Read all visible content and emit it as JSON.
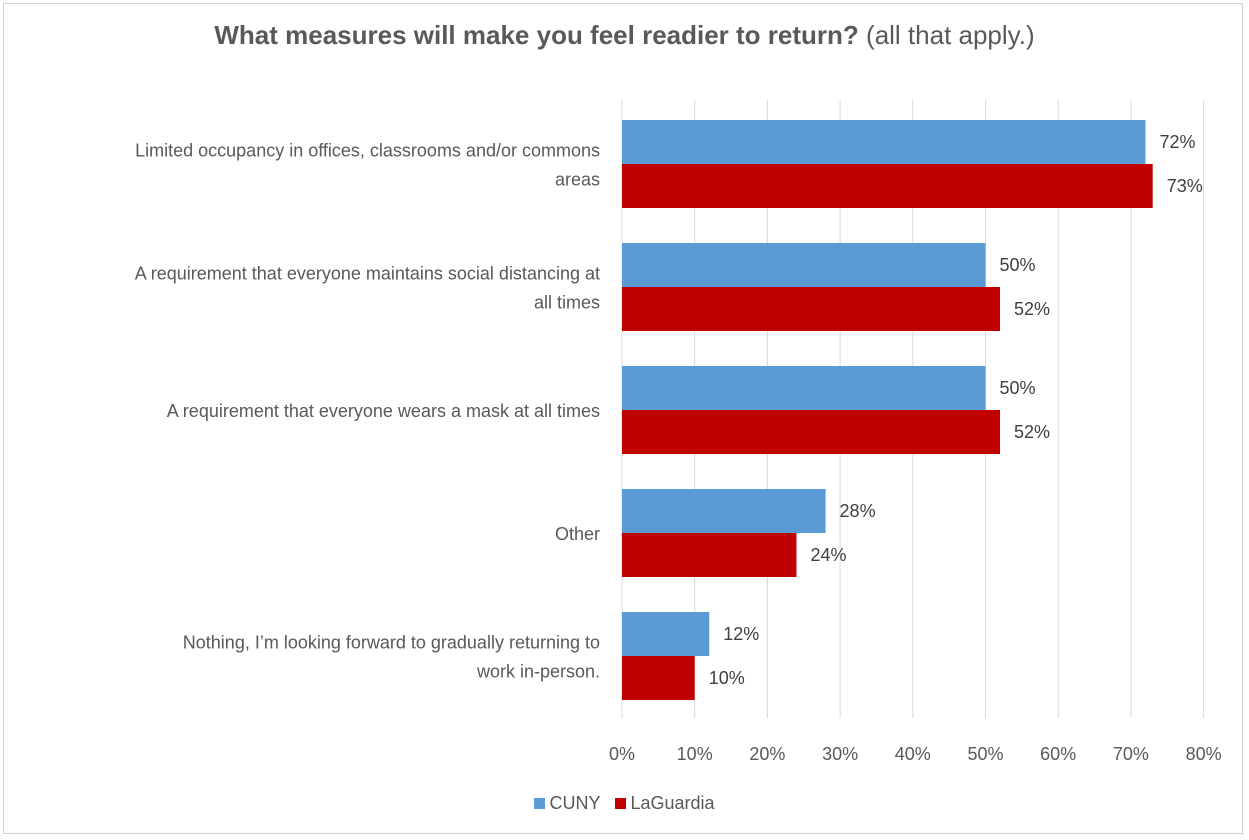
{
  "chart_data": {
    "type": "bar",
    "orientation": "horizontal",
    "title_bold": "What measures will make you feel readier to return?",
    "title_rest": "(all that apply.)",
    "categories": [
      [
        "Limited occupancy in offices, classrooms and/or commons",
        "areas"
      ],
      [
        "A requirement that everyone maintains social distancing at",
        "all times"
      ],
      [
        "A requirement that everyone wears a mask at all times"
      ],
      [
        "Other"
      ],
      [
        "Nothing, I’m looking forward to gradually returning to",
        "work in-person."
      ]
    ],
    "series": [
      {
        "name": "CUNY",
        "color": "#5b9bd5",
        "values": [
          72,
          50,
          50,
          28,
          12
        ],
        "labels": [
          "72%",
          "50%",
          "50%",
          "28%",
          "12%"
        ]
      },
      {
        "name": "LaGuardia",
        "color": "#c00000",
        "values": [
          73,
          52,
          52,
          24,
          10
        ],
        "labels": [
          "73%",
          "52%",
          "52%",
          "24%",
          "10%"
        ]
      }
    ],
    "xlim": [
      0,
      80
    ],
    "xticks": [
      "0%",
      "10%",
      "20%",
      "30%",
      "40%",
      "50%",
      "60%",
      "70%",
      "80%"
    ],
    "grid": true,
    "legend_position": "bottom"
  }
}
